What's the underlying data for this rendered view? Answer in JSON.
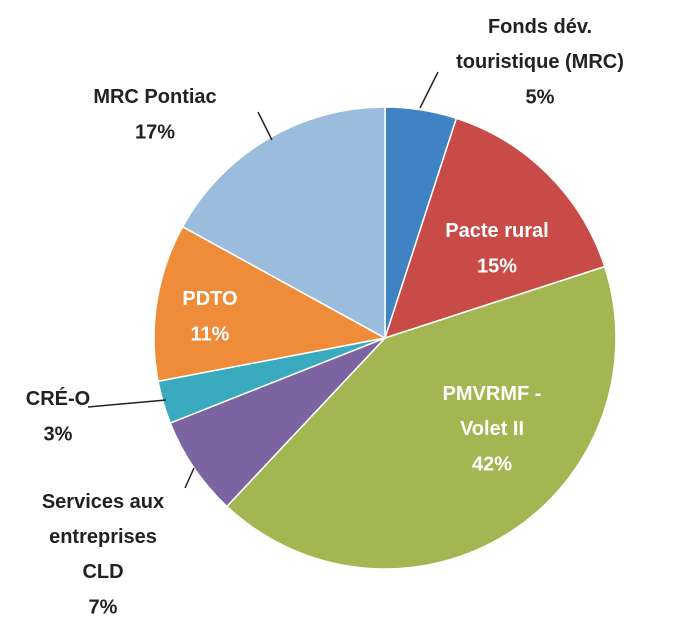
{
  "chart_data": {
    "type": "pie",
    "categories": [
      "Fonds dév.\ntouristique (MRC)",
      "Pacte rural",
      "PMVRMF -\nVolet II",
      "Services aux\nentreprises\nCLD",
      "CRÉ-O",
      "PDTO",
      "MRC Pontiac"
    ],
    "values": [
      5,
      15,
      42,
      7,
      3,
      11,
      17
    ],
    "value_labels": [
      "5%",
      "15%",
      "42%",
      "7%",
      "3%",
      "11%",
      "17%"
    ],
    "colors": [
      "#3f83c3",
      "#c84b47",
      "#a3b652",
      "#7c63a1",
      "#3aaabf",
      "#ef8c3a",
      "#9cbcdd"
    ]
  }
}
